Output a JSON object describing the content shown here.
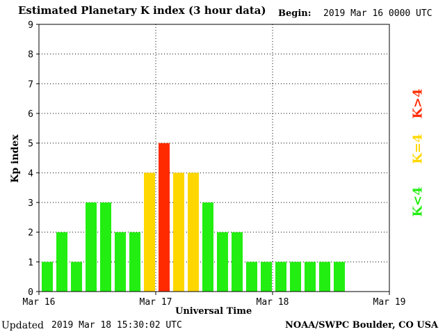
{
  "header": {
    "title": "Estimated Planetary K index (3 hour data)",
    "begin_label": "Begin:",
    "begin_value": "2019 Mar 16 0000 UTC"
  },
  "footer": {
    "updated_label": "Updated",
    "updated_value": "2019 Mar 18 15:30:02 UTC",
    "credit": "NOAA/SWPC Boulder, CO USA"
  },
  "legend": {
    "low": "K<4",
    "mid": "K=4",
    "high": "K>4"
  },
  "colors": {
    "low": "#22ee11",
    "mid": "#ffd700",
    "high": "#ff2a00",
    "grid": "#000000",
    "axis": "#000000"
  },
  "chart_data": {
    "type": "bar",
    "title": "Estimated Planetary K index (3 hour data)",
    "xlabel": "Universal Time",
    "ylabel": "Kp index",
    "ylim": [
      0,
      9
    ],
    "yticks": [
      "0",
      "1",
      "2",
      "3",
      "4",
      "5",
      "6",
      "7",
      "8",
      "9"
    ],
    "xticks": [
      "Mar 16",
      "Mar 17",
      "Mar 18",
      "Mar 19"
    ],
    "grid": true,
    "legend_placement": "right, rotated vertical",
    "slots_per_day": 8,
    "values": [
      1,
      2,
      1,
      3,
      3,
      2,
      2,
      4,
      5,
      4,
      4,
      3,
      2,
      2,
      1,
      1,
      1,
      1,
      1,
      1,
      1
    ]
  }
}
